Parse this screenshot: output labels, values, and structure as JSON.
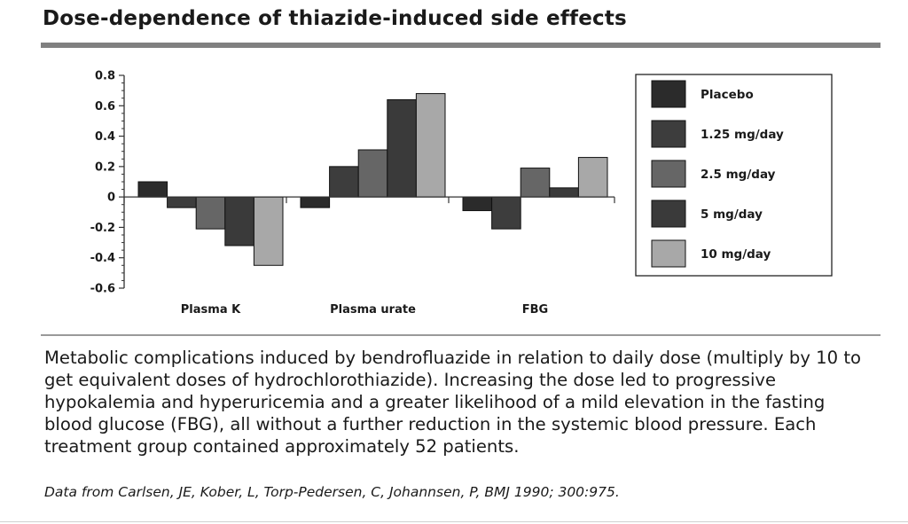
{
  "title": "Dose-dependence of thiazide-induced side effects",
  "caption": "Metabolic complications induced by bendrofluazide in relation to daily dose (multiply by 10 to get equivalent doses of hydrochlorothiazide). Increasing the dose led to progressive hypokalemia and hyperuricemia and a greater likelihood of a mild elevation in the fasting blood glucose (FBG), all without a further reduction in the systemic blood pressure. Each treatment group contained approximately 52 patients.",
  "source": "Data from Carlsen, JE, Kober, L, Torp-Pedersen, C, Johannsen, P, BMJ 1990; 300:975.",
  "chart_data": {
    "type": "bar",
    "categories": [
      "Plasma K",
      "Plasma urate",
      "FBG"
    ],
    "series": [
      {
        "name": "Placebo",
        "values": [
          0.1,
          -0.07,
          -0.09
        ],
        "color": "#2b2b2b"
      },
      {
        "name": "1.25 mg/day",
        "values": [
          -0.07,
          0.2,
          -0.21
        ],
        "color": "#3d3d3d"
      },
      {
        "name": "2.5 mg/day",
        "values": [
          -0.21,
          0.31,
          0.19
        ],
        "color": "#666666"
      },
      {
        "name": "5 mg/day",
        "values": [
          -0.32,
          0.64,
          0.06
        ],
        "color": "#3a3a3a"
      },
      {
        "name": "10 mg/day",
        "values": [
          -0.45,
          0.68,
          0.26
        ],
        "color": "#a8a8a8"
      }
    ],
    "yticks": [
      "0.8",
      "0.6",
      "0.4",
      "0.2",
      "0",
      "-0.2",
      "-0.4",
      "-0.6"
    ],
    "ylim": [
      -0.6,
      0.8
    ],
    "legend_position": "right",
    "grid": false
  }
}
